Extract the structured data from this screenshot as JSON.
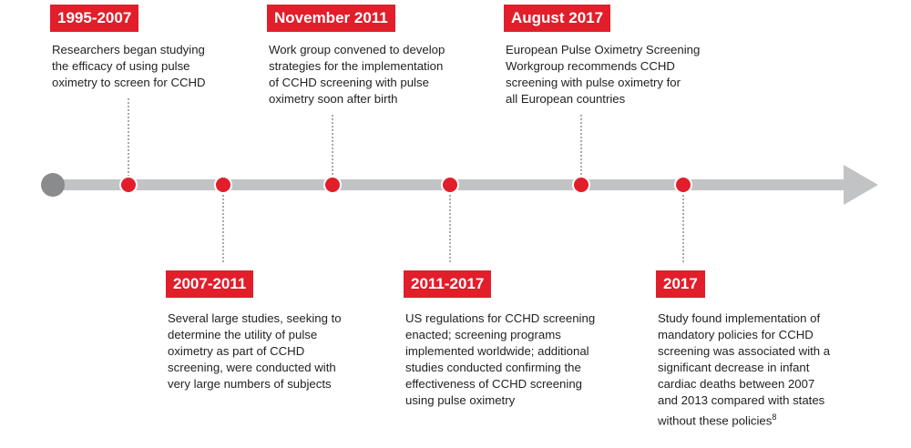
{
  "events": [
    {
      "date": "1995-2007",
      "lines": [
        "Researchers began studying",
        "the efficacy of using pulse",
        "oximetry to screen for CCHD"
      ]
    },
    {
      "date": "2007-2011",
      "lines": [
        "Several large studies, seeking to",
        "determine the utility of pulse",
        "oximetry as part of CCHD",
        "screening, were conducted with",
        "very large numbers of subjects"
      ]
    },
    {
      "date": "November 2011",
      "lines": [
        "Work group convened to develop",
        "strategies for the implementation",
        "of CCHD screening with pulse",
        "oximetry soon after birth"
      ]
    },
    {
      "date": "2011-2017",
      "lines": [
        "US regulations for CCHD screening",
        "enacted; screening programs",
        "implemented worldwide; additional",
        "studies conducted confirming the",
        "effectiveness of CCHD screening",
        "using pulse oximetry"
      ]
    },
    {
      "date": "August 2017",
      "lines": [
        "European Pulse Oximetry Screening",
        "Workgroup recommends CCHD",
        "screening with pulse oximetry for",
        "all European countries"
      ]
    },
    {
      "date": "2017",
      "lines": [
        "Study found implementation of",
        "mandatory policies for CCHD",
        "screening was associated with a",
        "significant decrease in infant",
        "cardiac deaths between 2007",
        "and 2013 compared with states",
        "without these policies"
      ],
      "footnote": "8"
    }
  ]
}
